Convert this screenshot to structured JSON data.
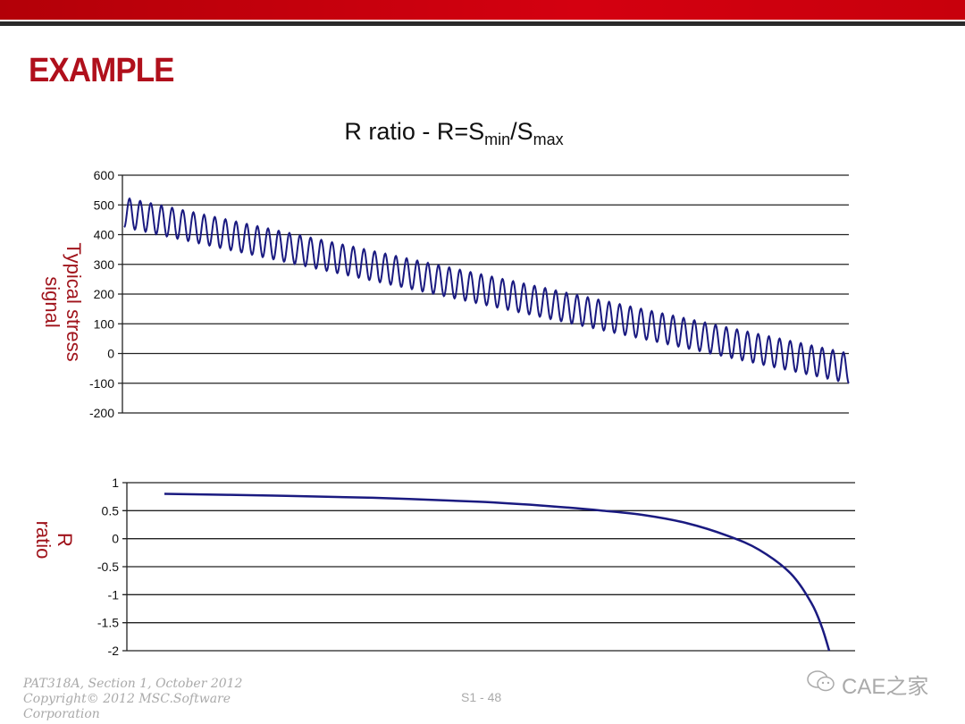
{
  "slide": {
    "heading": "EXAMPLE",
    "title_main": "R ratio - R=S",
    "title_sub1": "min",
    "title_mid": "/S",
    "title_sub2": "max",
    "footer_line1": "PAT318A, Section 1, October 2012",
    "footer_line2": "Copyright© 2012 MSC.Software",
    "footer_line3": "Corporation",
    "page_number": "S1 - 48",
    "watermark": "CAE之家",
    "colors": {
      "accent": "#c8000c",
      "heading": "#b0101c",
      "axis_label": "#a0141c",
      "series": "#1a1a80"
    }
  },
  "chart_data": [
    {
      "type": "line",
      "ylabel_line1": "Typical stress",
      "ylabel_line2": "signal",
      "ylim": [
        -200,
        600
      ],
      "yticks": [
        "600",
        "500",
        "400",
        "300",
        "200",
        "100",
        "0",
        "-100",
        "-200"
      ],
      "grid": true,
      "signal": {
        "description_type": "sinusoid-on-linear-trend",
        "mean_start": 475,
        "mean_end": -50,
        "amplitude": 50,
        "cycles": 68
      }
    },
    {
      "type": "line",
      "ylabel_line1": "R",
      "ylabel_line2": "ratio",
      "ylim": [
        -2,
        1
      ],
      "yticks": [
        "1",
        "0.5",
        "0",
        "-0.5",
        "-1",
        "-1.5",
        "-2"
      ],
      "grid": true,
      "x": [
        0,
        10,
        20,
        30,
        37,
        42,
        46,
        50,
        54,
        57,
        60,
        62,
        63,
        63.7
      ],
      "values": [
        0.8,
        0.77,
        0.73,
        0.66,
        0.58,
        0.5,
        0.42,
        0.28,
        0.05,
        -0.2,
        -0.62,
        -1.15,
        -1.58,
        -2
      ]
    }
  ]
}
